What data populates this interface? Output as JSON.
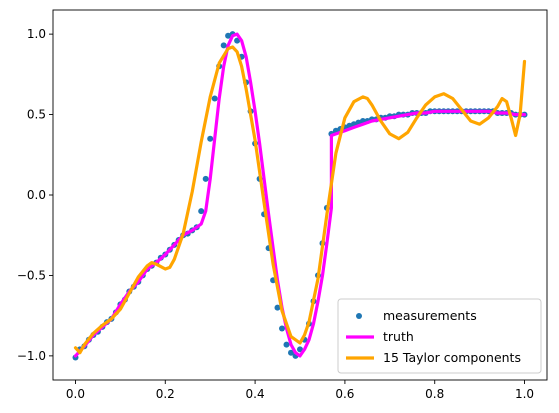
{
  "chart_data": {
    "type": "line",
    "title": "",
    "xlabel": "",
    "ylabel": "",
    "xlim": [
      -0.05,
      1.05
    ],
    "ylim": [
      -1.15,
      1.15
    ],
    "x_ticks": [
      0.0,
      0.2,
      0.4,
      0.6,
      0.8,
      1.0
    ],
    "x_tick_labels": [
      "0.0",
      "0.2",
      "0.4",
      "0.6",
      "0.8",
      "1.0"
    ],
    "y_ticks": [
      -1.0,
      -0.5,
      0.0,
      0.5,
      1.0
    ],
    "y_tick_labels": [
      "−1.0",
      "−0.5",
      "0.0",
      "0.5",
      "1.0"
    ],
    "grid": false,
    "legend_position": "lower-right",
    "series": [
      {
        "name": "measurements",
        "kind": "scatter",
        "color": "#1f77b4",
        "x": [
          0.0,
          0.01,
          0.02,
          0.03,
          0.04,
          0.05,
          0.06,
          0.07,
          0.08,
          0.09,
          0.1,
          0.11,
          0.12,
          0.13,
          0.14,
          0.15,
          0.16,
          0.17,
          0.18,
          0.19,
          0.2,
          0.21,
          0.22,
          0.23,
          0.24,
          0.25,
          0.26,
          0.27,
          0.28,
          0.29,
          0.3,
          0.31,
          0.32,
          0.33,
          0.34,
          0.35,
          0.36,
          0.37,
          0.38,
          0.39,
          0.4,
          0.41,
          0.42,
          0.43,
          0.44,
          0.45,
          0.46,
          0.47,
          0.48,
          0.49,
          0.5,
          0.51,
          0.52,
          0.53,
          0.54,
          0.55,
          0.56,
          0.57,
          0.58,
          0.59,
          0.6,
          0.61,
          0.62,
          0.63,
          0.64,
          0.65,
          0.66,
          0.67,
          0.68,
          0.69,
          0.7,
          0.71,
          0.72,
          0.73,
          0.74,
          0.75,
          0.76,
          0.77,
          0.78,
          0.79,
          0.8,
          0.81,
          0.82,
          0.83,
          0.84,
          0.85,
          0.86,
          0.87,
          0.88,
          0.89,
          0.9,
          0.91,
          0.92,
          0.93,
          0.94,
          0.95,
          0.96,
          0.97,
          0.98,
          0.99,
          1.0
        ],
        "y": [
          -1.01,
          -0.96,
          -0.94,
          -0.9,
          -0.87,
          -0.85,
          -0.82,
          -0.79,
          -0.77,
          -0.73,
          -0.68,
          -0.65,
          -0.6,
          -0.57,
          -0.54,
          -0.5,
          -0.46,
          -0.44,
          -0.42,
          -0.39,
          -0.37,
          -0.34,
          -0.31,
          -0.28,
          -0.25,
          -0.24,
          -0.22,
          -0.2,
          -0.1,
          0.1,
          0.35,
          0.6,
          0.8,
          0.93,
          0.99,
          1.0,
          0.96,
          0.86,
          0.7,
          0.52,
          0.32,
          0.1,
          -0.12,
          -0.33,
          -0.53,
          -0.7,
          -0.83,
          -0.93,
          -0.98,
          -1.0,
          -0.96,
          -0.9,
          -0.8,
          -0.66,
          -0.5,
          -0.3,
          -0.08,
          0.38,
          0.4,
          0.41,
          0.42,
          0.43,
          0.44,
          0.45,
          0.46,
          0.46,
          0.47,
          0.47,
          0.48,
          0.48,
          0.49,
          0.49,
          0.5,
          0.5,
          0.5,
          0.51,
          0.51,
          0.51,
          0.51,
          0.52,
          0.52,
          0.52,
          0.52,
          0.52,
          0.52,
          0.52,
          0.52,
          0.52,
          0.52,
          0.52,
          0.52,
          0.52,
          0.52,
          0.52,
          0.51,
          0.51,
          0.51,
          0.51,
          0.5,
          0.5,
          0.5
        ]
      },
      {
        "name": "truth",
        "kind": "line",
        "color": "#ff00ff",
        "x": [
          0.0,
          0.02,
          0.04,
          0.06,
          0.08,
          0.1,
          0.12,
          0.14,
          0.16,
          0.18,
          0.2,
          0.22,
          0.24,
          0.26,
          0.28,
          0.29,
          0.3,
          0.31,
          0.32,
          0.33,
          0.34,
          0.35,
          0.36,
          0.37,
          0.38,
          0.39,
          0.4,
          0.41,
          0.42,
          0.43,
          0.44,
          0.45,
          0.46,
          0.47,
          0.48,
          0.49,
          0.5,
          0.51,
          0.52,
          0.53,
          0.54,
          0.55,
          0.56,
          0.57,
          0.57,
          0.58,
          0.6,
          0.62,
          0.64,
          0.66,
          0.68,
          0.7,
          0.72,
          0.74,
          0.76,
          0.78,
          0.8,
          0.82,
          0.84,
          0.86,
          0.88,
          0.9,
          0.92,
          0.94,
          0.96,
          0.98,
          1.0
        ],
        "y": [
          -1.0,
          -0.94,
          -0.87,
          -0.82,
          -0.77,
          -0.68,
          -0.6,
          -0.54,
          -0.46,
          -0.42,
          -0.37,
          -0.31,
          -0.25,
          -0.22,
          -0.18,
          -0.1,
          0.1,
          0.35,
          0.6,
          0.8,
          0.93,
          0.99,
          1.0,
          0.96,
          0.86,
          0.7,
          0.52,
          0.32,
          0.1,
          -0.12,
          -0.33,
          -0.53,
          -0.7,
          -0.83,
          -0.93,
          -0.98,
          -1.0,
          -0.96,
          -0.9,
          -0.8,
          -0.66,
          -0.5,
          -0.3,
          -0.08,
          0.37,
          0.38,
          0.4,
          0.42,
          0.44,
          0.46,
          0.47,
          0.48,
          0.49,
          0.5,
          0.51,
          0.51,
          0.52,
          0.52,
          0.52,
          0.52,
          0.52,
          0.52,
          0.52,
          0.51,
          0.51,
          0.5,
          0.5
        ]
      },
      {
        "name": "15 Taylor components",
        "kind": "line",
        "color": "#ffa500",
        "x": [
          0.0,
          0.01,
          0.02,
          0.04,
          0.06,
          0.08,
          0.1,
          0.12,
          0.14,
          0.16,
          0.17,
          0.18,
          0.2,
          0.21,
          0.22,
          0.24,
          0.26,
          0.28,
          0.3,
          0.32,
          0.34,
          0.35,
          0.36,
          0.37,
          0.38,
          0.4,
          0.42,
          0.44,
          0.46,
          0.48,
          0.5,
          0.51,
          0.52,
          0.54,
          0.56,
          0.58,
          0.6,
          0.62,
          0.64,
          0.65,
          0.66,
          0.68,
          0.7,
          0.72,
          0.74,
          0.76,
          0.78,
          0.8,
          0.82,
          0.84,
          0.86,
          0.88,
          0.9,
          0.92,
          0.94,
          0.95,
          0.96,
          0.97,
          0.98,
          0.99,
          1.0
        ],
        "y": [
          -0.95,
          -0.98,
          -0.93,
          -0.86,
          -0.81,
          -0.77,
          -0.71,
          -0.61,
          -0.51,
          -0.44,
          -0.42,
          -0.43,
          -0.46,
          -0.45,
          -0.4,
          -0.24,
          0.02,
          0.33,
          0.61,
          0.82,
          0.91,
          0.92,
          0.89,
          0.8,
          0.66,
          0.34,
          -0.05,
          -0.43,
          -0.72,
          -0.88,
          -0.92,
          -0.87,
          -0.79,
          -0.52,
          -0.12,
          0.26,
          0.48,
          0.58,
          0.61,
          0.6,
          0.56,
          0.46,
          0.38,
          0.35,
          0.39,
          0.48,
          0.56,
          0.61,
          0.63,
          0.6,
          0.53,
          0.46,
          0.44,
          0.48,
          0.55,
          0.6,
          0.58,
          0.48,
          0.37,
          0.5,
          0.83
        ]
      }
    ]
  }
}
